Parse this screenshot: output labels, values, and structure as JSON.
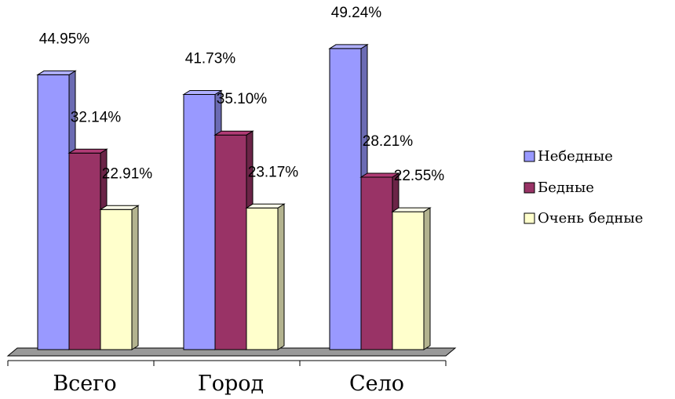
{
  "chart_data": {
    "type": "bar",
    "categories": [
      "Всего",
      "Город",
      "Село"
    ],
    "series": [
      {
        "name": "Небедные",
        "values": [
          44.95,
          41.73,
          49.24
        ],
        "labels": [
          "44.95%",
          "41.73%",
          "49.24%"
        ],
        "color": "#9999ff"
      },
      {
        "name": "Бедные",
        "values": [
          32.14,
          35.1,
          28.21
        ],
        "labels": [
          "32.14%",
          "35.10%",
          "28.21%"
        ],
        "color": "#993366"
      },
      {
        "name": "Очень бедные",
        "values": [
          22.91,
          23.17,
          22.55
        ],
        "labels": [
          "22.91%",
          "23.17%",
          "22.55%"
        ],
        "color": "#ffffcc"
      }
    ],
    "ylim": [
      0,
      55
    ],
    "legend_position": "right",
    "grid": false,
    "three_d": true
  }
}
